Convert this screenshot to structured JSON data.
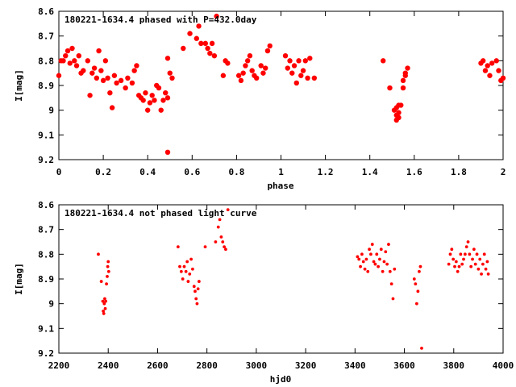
{
  "chart_data": [
    {
      "type": "scatter",
      "title": "180221-1634.4 phased with P=432.0day",
      "xlabel": "phase",
      "ylabel": "I[mag]",
      "xlim": [
        0,
        2
      ],
      "ylim": [
        9.2,
        8.6
      ],
      "y_inverted": true,
      "grid": false,
      "marker_color": "#ff0000",
      "marker": "filled-circle",
      "xticks": [
        "0",
        "0.2",
        "0.4",
        "0.6",
        "0.8",
        "1",
        "1.2",
        "1.4",
        "1.6",
        "1.8",
        "2"
      ],
      "yticks": [
        "8.6",
        "8.7",
        "8.8",
        "8.9",
        "9",
        "9.1",
        "9.2"
      ],
      "series": [
        {
          "points": [
            [
              0.0,
              8.86
            ],
            [
              0.01,
              8.8
            ],
            [
              0.02,
              8.8
            ],
            [
              0.03,
              8.78
            ],
            [
              0.04,
              8.76
            ],
            [
              0.05,
              8.81
            ],
            [
              0.06,
              8.75
            ],
            [
              0.07,
              8.8
            ],
            [
              0.08,
              8.82
            ],
            [
              0.09,
              8.78
            ],
            [
              0.1,
              8.85
            ],
            [
              0.11,
              8.84
            ],
            [
              0.13,
              8.8
            ],
            [
              0.14,
              8.94
            ],
            [
              0.15,
              8.85
            ],
            [
              0.16,
              8.83
            ],
            [
              0.17,
              8.87
            ],
            [
              0.18,
              8.76
            ],
            [
              0.19,
              8.84
            ],
            [
              0.2,
              8.88
            ],
            [
              0.21,
              8.8
            ],
            [
              0.22,
              8.87
            ],
            [
              0.23,
              8.93
            ],
            [
              0.24,
              8.99
            ],
            [
              0.25,
              8.86
            ],
            [
              0.26,
              8.89
            ],
            [
              0.28,
              8.88
            ],
            [
              0.3,
              8.91
            ],
            [
              0.31,
              8.87
            ],
            [
              0.33,
              8.89
            ],
            [
              0.34,
              8.84
            ],
            [
              0.35,
              8.82
            ],
            [
              0.36,
              8.94
            ],
            [
              0.37,
              8.95
            ],
            [
              0.38,
              8.96
            ],
            [
              0.39,
              8.93
            ],
            [
              0.4,
              9.0
            ],
            [
              0.41,
              8.97
            ],
            [
              0.42,
              8.94
            ],
            [
              0.43,
              8.96
            ],
            [
              0.44,
              8.9
            ],
            [
              0.45,
              8.91
            ],
            [
              0.46,
              9.0
            ],
            [
              0.47,
              8.96
            ],
            [
              0.48,
              8.93
            ],
            [
              0.49,
              8.95
            ],
            [
              0.5,
              8.85
            ],
            [
              0.49,
              8.79
            ],
            [
              0.51,
              8.87
            ],
            [
              0.49,
              9.17
            ],
            [
              0.56,
              8.75
            ],
            [
              0.59,
              8.69
            ],
            [
              0.62,
              8.71
            ],
            [
              0.63,
              8.66
            ],
            [
              0.64,
              8.73
            ],
            [
              0.66,
              8.73
            ],
            [
              0.67,
              8.75
            ],
            [
              0.68,
              8.77
            ],
            [
              0.69,
              8.73
            ],
            [
              0.7,
              8.78
            ],
            [
              0.71,
              8.62
            ],
            [
              0.74,
              8.86
            ],
            [
              0.75,
              8.8
            ],
            [
              0.76,
              8.81
            ],
            [
              0.81,
              8.86
            ],
            [
              0.82,
              8.88
            ],
            [
              0.83,
              8.85
            ],
            [
              0.84,
              8.82
            ],
            [
              0.85,
              8.8
            ],
            [
              0.86,
              8.78
            ],
            [
              0.87,
              8.84
            ],
            [
              0.88,
              8.86
            ],
            [
              0.89,
              8.87
            ],
            [
              0.91,
              8.82
            ],
            [
              0.92,
              8.85
            ],
            [
              0.93,
              8.83
            ],
            [
              0.94,
              8.76
            ],
            [
              0.95,
              8.74
            ],
            [
              1.02,
              8.78
            ],
            [
              1.03,
              8.83
            ],
            [
              1.04,
              8.8
            ],
            [
              1.05,
              8.85
            ],
            [
              1.06,
              8.82
            ],
            [
              1.07,
              8.89
            ],
            [
              1.08,
              8.8
            ],
            [
              1.09,
              8.86
            ],
            [
              1.1,
              8.84
            ],
            [
              1.11,
              8.8
            ],
            [
              1.12,
              8.87
            ],
            [
              1.13,
              8.79
            ],
            [
              1.15,
              8.87
            ],
            [
              1.46,
              8.8
            ],
            [
              1.49,
              8.91
            ],
            [
              1.51,
              9.0
            ],
            [
              1.52,
              9.02
            ],
            [
              1.52,
              9.04
            ],
            [
              1.53,
              8.98
            ],
            [
              1.53,
              9.01
            ],
            [
              1.52,
              8.99
            ],
            [
              1.53,
              9.03
            ],
            [
              1.54,
              8.98
            ],
            [
              1.55,
              8.91
            ],
            [
              1.55,
              8.88
            ],
            [
              1.56,
              8.86
            ],
            [
              1.56,
              8.85
            ],
            [
              1.57,
              8.83
            ],
            [
              1.9,
              8.81
            ],
            [
              1.91,
              8.8
            ],
            [
              1.92,
              8.84
            ],
            [
              1.93,
              8.82
            ],
            [
              1.94,
              8.86
            ],
            [
              1.95,
              8.81
            ],
            [
              1.97,
              8.8
            ],
            [
              1.98,
              8.84
            ],
            [
              1.99,
              8.88
            ],
            [
              2.0,
              8.87
            ]
          ]
        }
      ]
    },
    {
      "type": "scatter",
      "title": "180221-1634.4 not phased light curve",
      "xlabel": "hjd0",
      "ylabel": "I[mag]",
      "xlim": [
        2200,
        4000
      ],
      "ylim": [
        9.2,
        8.6
      ],
      "y_inverted": true,
      "grid": false,
      "marker_color": "#ff0000",
      "marker": "small-diamond",
      "xticks": [
        "2200",
        "2400",
        "2600",
        "2800",
        "3000",
        "3200",
        "3400",
        "3600",
        "3800",
        "4000"
      ],
      "yticks": [
        "8.6",
        "8.7",
        "8.8",
        "8.9",
        "9",
        "9.1",
        "9.2"
      ],
      "series": [
        {
          "points": [
            [
              2360,
              8.8
            ],
            [
              2372,
              8.91
            ],
            [
              2378,
              8.99
            ],
            [
              2380,
              9.03
            ],
            [
              2382,
              9.04
            ],
            [
              2384,
              9.0
            ],
            [
              2386,
              8.98
            ],
            [
              2388,
              9.02
            ],
            [
              2390,
              8.99
            ],
            [
              2393,
              8.92
            ],
            [
              2396,
              8.89
            ],
            [
              2398,
              8.85
            ],
            [
              2400,
              8.83
            ],
            [
              2402,
              8.87
            ],
            [
              2683,
              8.77
            ],
            [
              2690,
              8.85
            ],
            [
              2696,
              8.87
            ],
            [
              2702,
              8.9
            ],
            [
              2708,
              8.85
            ],
            [
              2715,
              8.87
            ],
            [
              2720,
              8.83
            ],
            [
              2724,
              8.91
            ],
            [
              2730,
              8.88
            ],
            [
              2736,
              8.82
            ],
            [
              2742,
              8.86
            ],
            [
              2748,
              8.93
            ],
            [
              2752,
              8.95
            ],
            [
              2756,
              8.98
            ],
            [
              2760,
              9.0
            ],
            [
              2764,
              8.94
            ],
            [
              2768,
              8.91
            ],
            [
              2793,
              8.77
            ],
            [
              2835,
              8.75
            ],
            [
              2846,
              8.69
            ],
            [
              2852,
              8.66
            ],
            [
              2858,
              8.73
            ],
            [
              2864,
              8.75
            ],
            [
              2870,
              8.77
            ],
            [
              2876,
              8.78
            ],
            [
              2885,
              8.62
            ],
            [
              3410,
              8.81
            ],
            [
              3416,
              8.82
            ],
            [
              3422,
              8.85
            ],
            [
              3428,
              8.8
            ],
            [
              3434,
              8.83
            ],
            [
              3440,
              8.86
            ],
            [
              3446,
              8.82
            ],
            [
              3452,
              8.87
            ],
            [
              3458,
              8.78
            ],
            [
              3464,
              8.8
            ],
            [
              3470,
              8.76
            ],
            [
              3476,
              8.83
            ],
            [
              3482,
              8.84
            ],
            [
              3488,
              8.8
            ],
            [
              3494,
              8.85
            ],
            [
              3500,
              8.82
            ],
            [
              3506,
              8.78
            ],
            [
              3512,
              8.87
            ],
            [
              3518,
              8.83
            ],
            [
              3524,
              8.79
            ],
            [
              3530,
              8.84
            ],
            [
              3536,
              8.76
            ],
            [
              3542,
              8.87
            ],
            [
              3548,
              8.92
            ],
            [
              3554,
              8.98
            ],
            [
              3560,
              8.86
            ],
            [
              3640,
              8.9
            ],
            [
              3645,
              8.92
            ],
            [
              3650,
              9.0
            ],
            [
              3655,
              8.95
            ],
            [
              3660,
              8.87
            ],
            [
              3665,
              8.85
            ],
            [
              3670,
              9.18
            ],
            [
              3780,
              8.84
            ],
            [
              3786,
              8.8
            ],
            [
              3792,
              8.78
            ],
            [
              3798,
              8.82
            ],
            [
              3804,
              8.85
            ],
            [
              3810,
              8.83
            ],
            [
              3816,
              8.87
            ],
            [
              3822,
              8.85
            ],
            [
              3828,
              8.8
            ],
            [
              3834,
              8.84
            ],
            [
              3840,
              8.82
            ],
            [
              3846,
              8.8
            ],
            [
              3852,
              8.77
            ],
            [
              3858,
              8.75
            ],
            [
              3864,
              8.8
            ],
            [
              3870,
              8.85
            ],
            [
              3876,
              8.82
            ],
            [
              3882,
              8.78
            ],
            [
              3888,
              8.84
            ],
            [
              3894,
              8.8
            ],
            [
              3900,
              8.86
            ],
            [
              3906,
              8.82
            ],
            [
              3912,
              8.88
            ],
            [
              3918,
              8.84
            ],
            [
              3924,
              8.8
            ],
            [
              3930,
              8.86
            ],
            [
              3936,
              8.83
            ],
            [
              3940,
              8.88
            ]
          ]
        }
      ]
    }
  ]
}
